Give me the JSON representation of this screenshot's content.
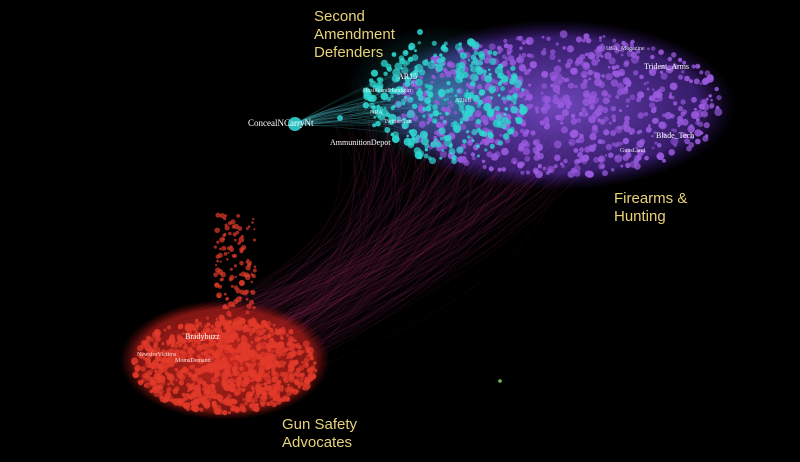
{
  "clusters": {
    "second_amendment": "Second\nAmendment\nDefenders",
    "firearms_hunting": "Firearms &\nHunting",
    "gun_safety": "Gun Safety\nAdvocates"
  },
  "node_labels": {
    "concealncarrynt": "ConcealNCarryNt",
    "ammunitiondepot": "AmmunitionDepot",
    "trident_arms": "Trident_Arms",
    "blade_tech": "Blade_Tech",
    "bradybuzz": "Bradybuzz",
    "ar15": "AR15",
    "nra": "NRA",
    "hostileandhandgun": "HostileandHandgun",
    "twitter_gun": "TwitterGun",
    "a2jeff": "A2Jeff",
    "gunsland": "GunsLand",
    "usa_magazine": "USA_Magazine",
    "newsforvictims": "NewsforVictims",
    "momsdemand": "MomsDemand"
  },
  "colors": {
    "background": "#000000",
    "gun_safety_nodes": "#e23a2a",
    "second_amendment_nodes": "#2fd6d0",
    "firearms_nodes": "#9b5be0",
    "edges": "#8a2a5a",
    "label_text": "#e8d27a"
  }
}
